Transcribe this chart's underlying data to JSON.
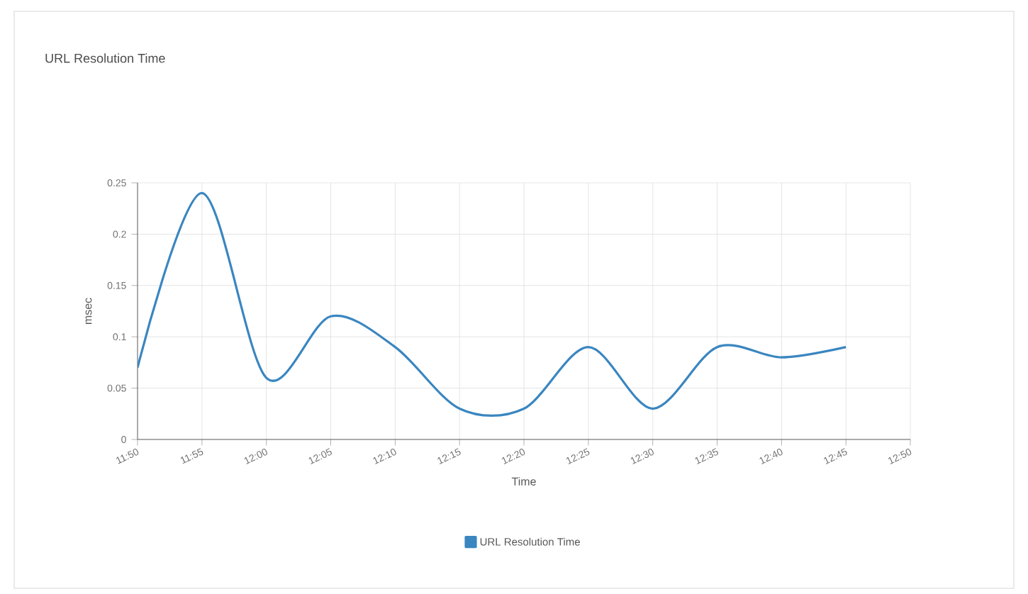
{
  "chart_data": {
    "type": "line",
    "title": "URL Resolution Time",
    "xlabel": "Time",
    "ylabel": "msec",
    "x": [
      11.8333,
      11.9167,
      12.0,
      12.0833,
      12.1667,
      12.25,
      12.3333,
      12.4167,
      12.5,
      12.5833,
      12.6667,
      12.75
    ],
    "series": [
      {
        "name": "URL Resolution Time",
        "color": "#3a86c0",
        "values": [
          0.07,
          0.24,
          0.06,
          0.12,
          0.09,
          0.03,
          0.03,
          0.09,
          0.03,
          0.09,
          0.08,
          0.09
        ]
      }
    ],
    "xlim": [
      11.8333,
      12.8333
    ],
    "xticks": [
      {
        "value": 11.8333,
        "label": "11:50"
      },
      {
        "value": 11.9167,
        "label": "11:55"
      },
      {
        "value": 12.0,
        "label": "12:00"
      },
      {
        "value": 12.0833,
        "label": "12:05"
      },
      {
        "value": 12.1667,
        "label": "12:10"
      },
      {
        "value": 12.25,
        "label": "12:15"
      },
      {
        "value": 12.3333,
        "label": "12:20"
      },
      {
        "value": 12.4167,
        "label": "12:25"
      },
      {
        "value": 12.5,
        "label": "12:30"
      },
      {
        "value": 12.5833,
        "label": "12:35"
      },
      {
        "value": 12.6667,
        "label": "12:40"
      },
      {
        "value": 12.75,
        "label": "12:45"
      },
      {
        "value": 12.8333,
        "label": "12:50"
      }
    ],
    "ylim": [
      0,
      0.25
    ],
    "yticks": [
      0,
      0.05,
      0.1,
      0.15,
      0.2,
      0.25
    ],
    "grid": true,
    "legend": "bottom",
    "marker": "none",
    "line_style": "solid"
  }
}
